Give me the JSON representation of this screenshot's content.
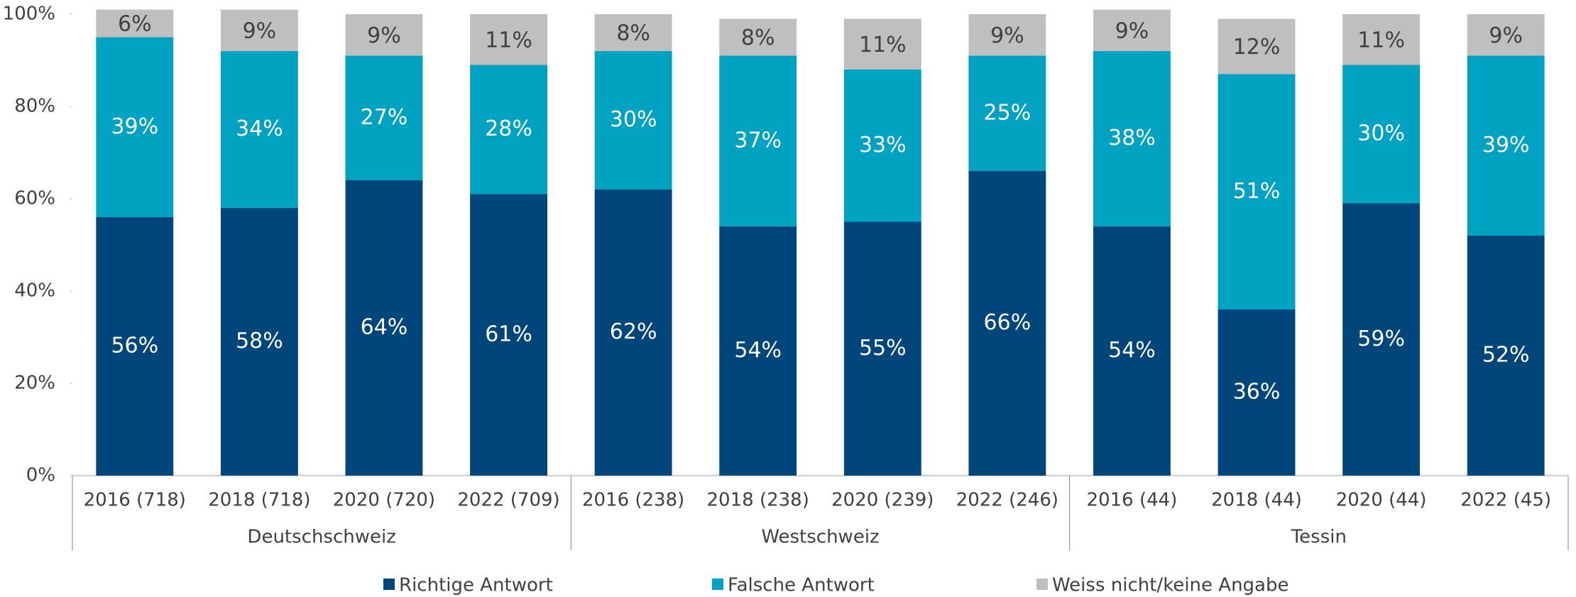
{
  "chart_data": {
    "type": "stacked_bar",
    "categories": [
      "2016 (718)",
      "2018 (718)",
      "2020 (720)",
      "2022 (709)",
      "2016 (238)",
      "2018 (238)",
      "2020 (239)",
      "2022 (246)",
      "2016 (44)",
      "2018 (44)",
      "2020 (44)",
      "2022 (45)"
    ],
    "groups": [
      {
        "name": "Deutschschweiz",
        "size": 4
      },
      {
        "name": "Westschweiz",
        "size": 4
      },
      {
        "name": "Tessin",
        "size": 4
      }
    ],
    "series": [
      {
        "name": "Richtige Antwort",
        "color": "#00467a",
        "label_color": "#ffffff",
        "values": [
          56,
          58,
          64,
          61,
          62,
          54,
          55,
          66,
          54,
          36,
          59,
          52
        ],
        "value_labels": [
          "56%",
          "58%",
          "64%",
          "61%",
          "62%",
          "54%",
          "55%",
          "66%",
          "54%",
          "36%",
          "59%",
          "52%"
        ]
      },
      {
        "name": "Falsche Antwort",
        "color": "#00a2c2",
        "label_color": "#ffffff",
        "values": [
          39,
          34,
          27,
          28,
          30,
          37,
          33,
          25,
          38,
          51,
          30,
          39
        ],
        "value_labels": [
          "39%",
          "34%",
          "27%",
          "28%",
          "30%",
          "37%",
          "33%",
          "25%",
          "38%",
          "51%",
          "30%",
          "39%"
        ]
      },
      {
        "name": "Weiss nicht/keine Angabe",
        "color": "#bfbfbf",
        "label_color": "#404040",
        "values": [
          6,
          9,
          9,
          11,
          8,
          8,
          11,
          9,
          9,
          12,
          11,
          9
        ],
        "value_labels": [
          "6%",
          "9%",
          "9%",
          "11%",
          "8%",
          "8%",
          "11%",
          "9%",
          "9%",
          "12%",
          "11%",
          "9%"
        ]
      }
    ],
    "ylim": [
      0,
      100
    ],
    "yticks": [
      {
        "value": 0,
        "label": "0%"
      },
      {
        "value": 20,
        "label": "20%"
      },
      {
        "value": 40,
        "label": "40%"
      },
      {
        "value": 60,
        "label": "60%"
      },
      {
        "value": 80,
        "label": "80%"
      },
      {
        "value": 100,
        "label": "100%"
      }
    ],
    "legend": "bottom"
  }
}
